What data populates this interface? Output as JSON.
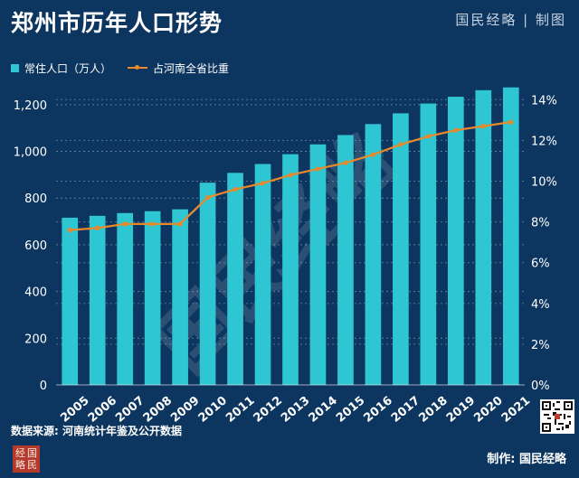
{
  "title": "郑州市历年人口形势",
  "brand_top": "国民经略 | 制图",
  "source": "数据来源: 河南统计年鉴及公开数据",
  "credit": "制作: 国民经略",
  "logo": "经国略民",
  "watermark": "国民经略",
  "colors": {
    "background": "#0c3660",
    "bar": "#2ec6d2",
    "line": "#e88a2b",
    "text": "#ffffff"
  },
  "chart_data": {
    "type": "bar",
    "categories": [
      "2005",
      "2006",
      "2007",
      "2008",
      "2009",
      "2010",
      "2011",
      "2012",
      "2013",
      "2014",
      "2015",
      "2016",
      "2017",
      "2018",
      "2019",
      "2020",
      "2021"
    ],
    "series": [
      {
        "name": "常住人口（万人）",
        "type": "bar",
        "axis": "left",
        "values": [
          716,
          724,
          736,
          744,
          752,
          866,
          908,
          946,
          988,
          1030,
          1070,
          1117,
          1163,
          1205,
          1234,
          1262,
          1274
        ]
      },
      {
        "name": "占河南全省比重",
        "type": "line",
        "axis": "right",
        "values": [
          7.6,
          7.7,
          7.9,
          7.9,
          7.9,
          9.2,
          9.6,
          9.9,
          10.3,
          10.6,
          10.9,
          11.3,
          11.8,
          12.2,
          12.5,
          12.7,
          12.9
        ]
      }
    ],
    "y_left": {
      "min": 0,
      "max": 1300,
      "ticks": [
        0,
        200,
        400,
        600,
        800,
        1000,
        1200
      ],
      "tick_labels": [
        "0",
        "200",
        "400",
        "600",
        "800",
        "1,000",
        "1,200"
      ]
    },
    "y_right": {
      "min": 0,
      "max": 14.9,
      "ticks": [
        0,
        2,
        4,
        6,
        8,
        10,
        12,
        14
      ],
      "tick_labels": [
        "0%",
        "2%",
        "4%",
        "6%",
        "8%",
        "10%",
        "12%",
        "14%"
      ]
    },
    "grid": true,
    "legend_position": "top-left"
  }
}
